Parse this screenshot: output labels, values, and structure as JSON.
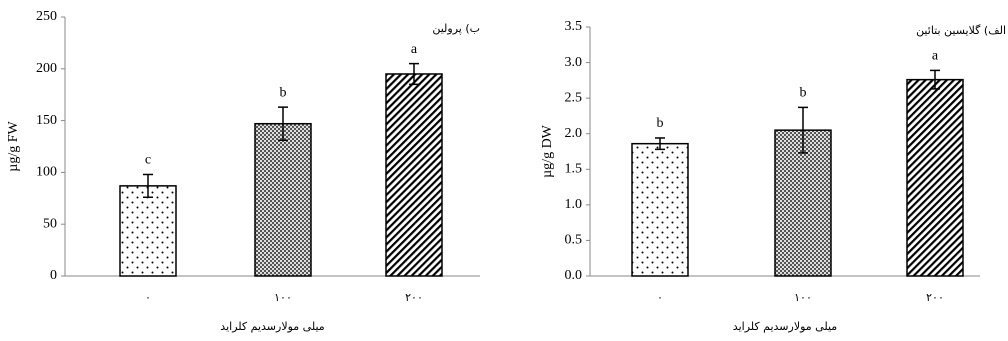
{
  "chart_data": [
    {
      "type": "bar",
      "title": "ب) پرولین",
      "y_label": "µg/g FW",
      "x_label": "میلی مولارسدیم کلراید",
      "categories": [
        "۰",
        "۱۰۰",
        "۲۰۰"
      ],
      "values": [
        87,
        147,
        195
      ],
      "errors": [
        11,
        16,
        10
      ],
      "letters": [
        "c",
        "b",
        "a"
      ],
      "color": "#000000",
      "ylim": [
        0,
        250
      ],
      "yticks": [
        0,
        50,
        100,
        150,
        200,
        250
      ]
    },
    {
      "type": "bar",
      "title": "الف) گلایسین بتائین",
      "y_label": "µg/g DW",
      "x_label": "میلی مولارسدیم کلراید",
      "categories": [
        "۰",
        "۱۰۰",
        "۲۰۰"
      ],
      "values": [
        1.86,
        2.05,
        2.76
      ],
      "errors": [
        0.08,
        0.32,
        0.13
      ],
      "letters": [
        "b",
        "b",
        "a"
      ],
      "color": "#000000",
      "ylim": [
        0,
        3.5
      ],
      "yticks": [
        {
          "value": 0,
          "label": "0.0"
        },
        0.5,
        {
          "value": 1,
          "label": "1.0"
        },
        1.5,
        {
          "value": 2,
          "label": "2.0"
        },
        2.5,
        {
          "value": 3,
          "label": "3.0"
        },
        3.5
      ]
    }
  ]
}
